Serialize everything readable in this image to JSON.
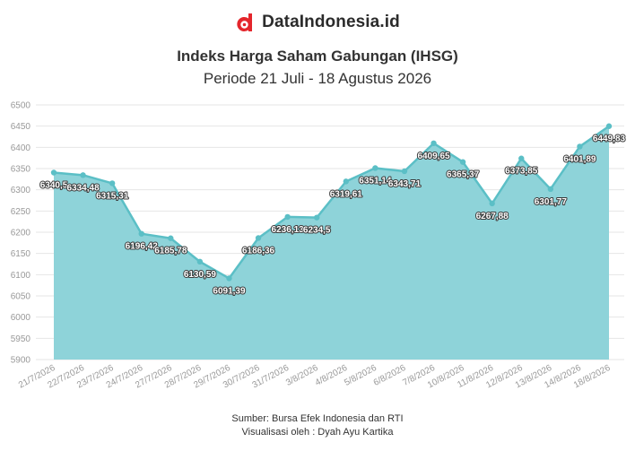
{
  "brand": {
    "name": "DataIndonesia.id",
    "logo_icon": "dataindonesia-logo-icon",
    "logo_color": "#e4262c"
  },
  "chart_data": {
    "type": "area",
    "title": "Indeks Harga Saham Gabungan (IHSG)",
    "subtitle": "Periode 21 Juli - 18 Agustus 2026",
    "xlabel": "",
    "ylabel": "",
    "ylim": [
      5900,
      6500
    ],
    "yticks": [
      5900,
      5950,
      6000,
      6050,
      6100,
      6150,
      6200,
      6250,
      6300,
      6350,
      6400,
      6450,
      6500
    ],
    "grid": true,
    "legend": "none",
    "colors": {
      "line": "#5bbfc6",
      "fill": "#8ed3d9",
      "label_text": "#ffffff",
      "axis_text": "#999999"
    },
    "categories": [
      "21/7/2026",
      "22/7/2026",
      "23/7/2026",
      "24/7/2026",
      "27/7/2026",
      "28/7/2026",
      "29/7/2026",
      "30/7/2026",
      "31/7/2026",
      "3/8/2026",
      "4/8/2026",
      "5/8/2026",
      "6/8/2026",
      "7/8/2026",
      "10/8/2026",
      "11/8/2026",
      "12/8/2026",
      "13/8/2026",
      "14/8/2026",
      "18/8/2026"
    ],
    "values": [
      6340.5,
      6334.48,
      6315.31,
      6196.42,
      6185.78,
      6130.59,
      6091.39,
      6186.36,
      6236.13,
      6234.5,
      6319.61,
      6351.14,
      6343.71,
      6409.65,
      6365.37,
      6267.88,
      6373.85,
      6301.77,
      6401.89,
      6449.83
    ],
    "data_labels": [
      "6340,5",
      "6334,48",
      "6315,31",
      "6196,42",
      "6185,78",
      "6130,59",
      "6091,39",
      "6186,36",
      "6236,13",
      "6234,5",
      "6319,61",
      "6351,14",
      "6343,71",
      "6409,65",
      "6365,37",
      "6267,88",
      "6373,85",
      "6301,77",
      "6401,89",
      "6449,83"
    ]
  },
  "footer": {
    "source": "Sumber: Bursa Efek Indonesia dan RTI",
    "visualization": "Visualisasi oleh : Dyah Ayu Kartika"
  }
}
